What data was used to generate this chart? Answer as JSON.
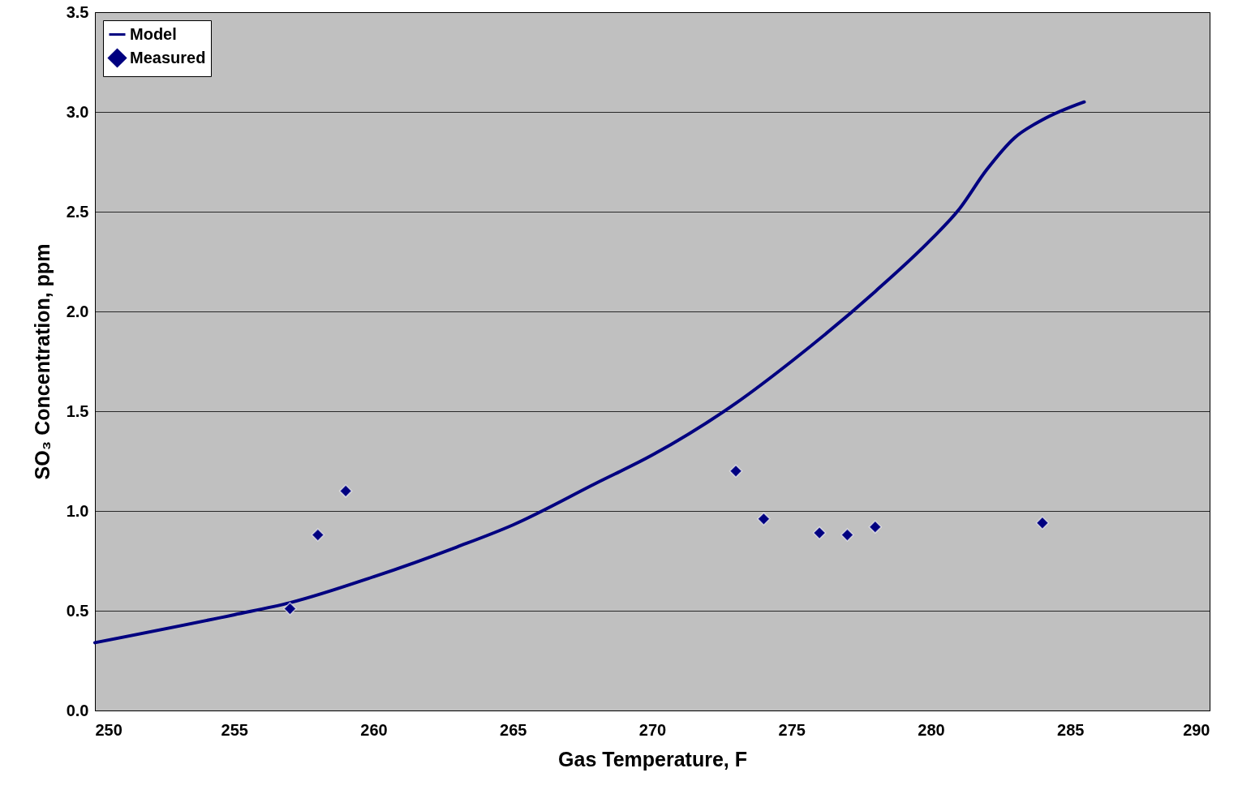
{
  "chart_data": {
    "type": "line",
    "xlabel": "Gas Temperature, F",
    "ylabel": "SO₃ Concentration, ppm",
    "xlim": [
      250,
      290
    ],
    "xticks": [
      250,
      255,
      260,
      265,
      270,
      275,
      280,
      285,
      290
    ],
    "ylim": [
      0,
      3.5
    ],
    "yticks": [
      {
        "value": 0,
        "label": "0.0"
      },
      {
        "value": 0.5,
        "label": "0.5"
      },
      {
        "value": 1,
        "label": "1.0"
      },
      {
        "value": 1.5,
        "label": "1.5"
      },
      {
        "value": 2,
        "label": "2.0"
      },
      {
        "value": 2.5,
        "label": "2.5"
      },
      {
        "value": 3,
        "label": "3.0"
      },
      {
        "value": 3.5,
        "label": "3.5"
      }
    ],
    "grid": "y",
    "legend": "top left",
    "line_style": "solid",
    "series": [
      {
        "name": "Model",
        "color": "#000080",
        "x": [
          250,
          255,
          257,
          260,
          263,
          265,
          268,
          270,
          273,
          275,
          278,
          280,
          281,
          282,
          283,
          284,
          285.5
        ],
        "values": [
          0.34,
          0.48,
          0.54,
          0.67,
          0.82,
          0.93,
          1.14,
          1.28,
          1.54,
          1.75,
          2.1,
          2.36,
          2.51,
          2.71,
          2.87,
          2.96,
          3.05
        ]
      },
      {
        "name": "Measured",
        "type": "scatter",
        "marker": "diamond",
        "color": "#000080",
        "x": [
          257,
          258,
          259,
          273,
          274,
          276,
          277,
          278,
          284
        ],
        "values": [
          0.51,
          0.88,
          1.1,
          1.2,
          0.96,
          0.89,
          0.88,
          0.92,
          0.94
        ]
      }
    ]
  }
}
